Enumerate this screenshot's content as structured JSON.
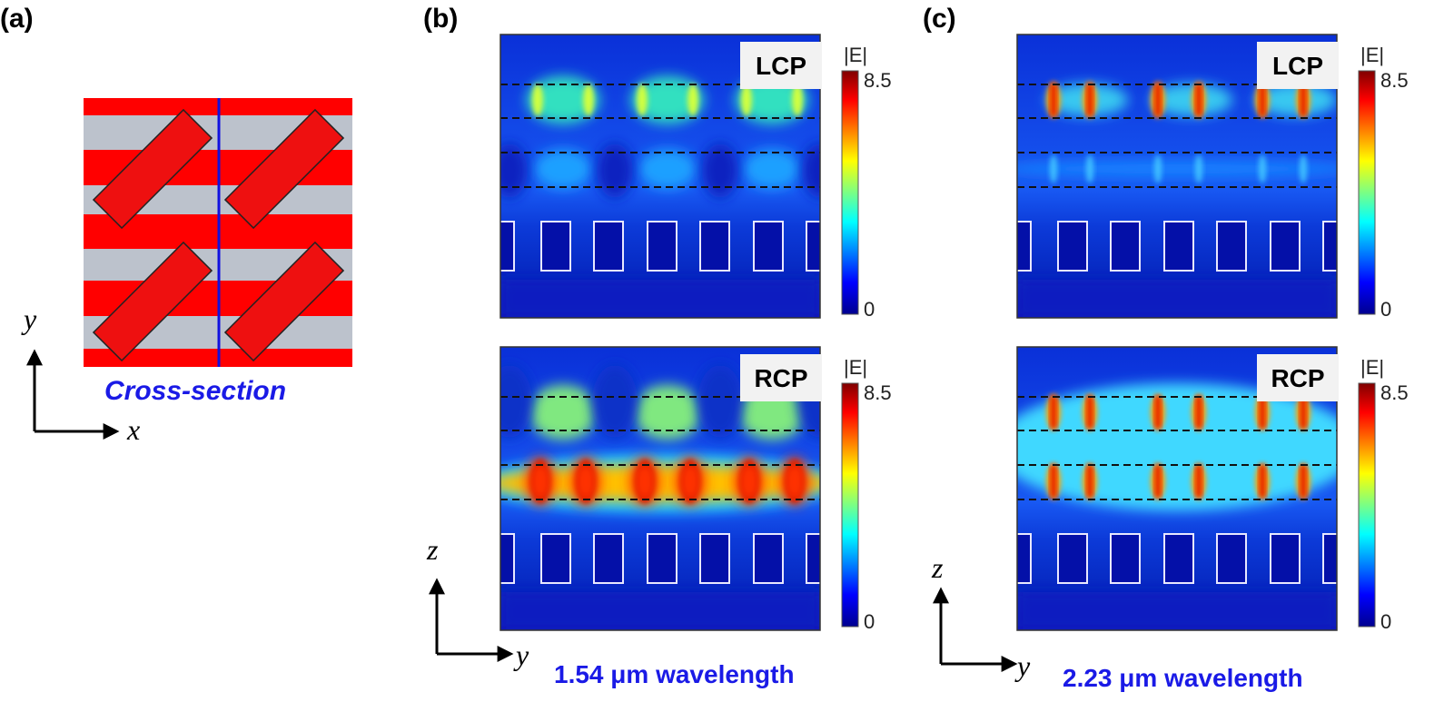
{
  "panels": [
    {
      "label": "(a)",
      "axes": {
        "vertical": "y",
        "horizontal": "x"
      },
      "caption": "Cross-section"
    },
    {
      "label": "(b)",
      "axes": {
        "vertical": "z",
        "horizontal": "y"
      },
      "caption": "1.54 μm wavelength",
      "maps": [
        {
          "polarization": "LCP",
          "colorbar": {
            "title": "|E|",
            "max": 8.5,
            "min": 0
          }
        },
        {
          "polarization": "RCP",
          "colorbar": {
            "title": "|E|",
            "max": 8.5,
            "min": 0
          }
        }
      ]
    },
    {
      "label": "(c)",
      "axes": {
        "vertical": "z",
        "horizontal": "y"
      },
      "caption": "2.23 μm wavelength",
      "maps": [
        {
          "polarization": "LCP",
          "colorbar": {
            "title": "|E|",
            "max": 8.5,
            "min": 0
          }
        },
        {
          "polarization": "RCP",
          "colorbar": {
            "title": "|E|",
            "max": 8.5,
            "min": 0
          }
        }
      ]
    }
  ]
}
